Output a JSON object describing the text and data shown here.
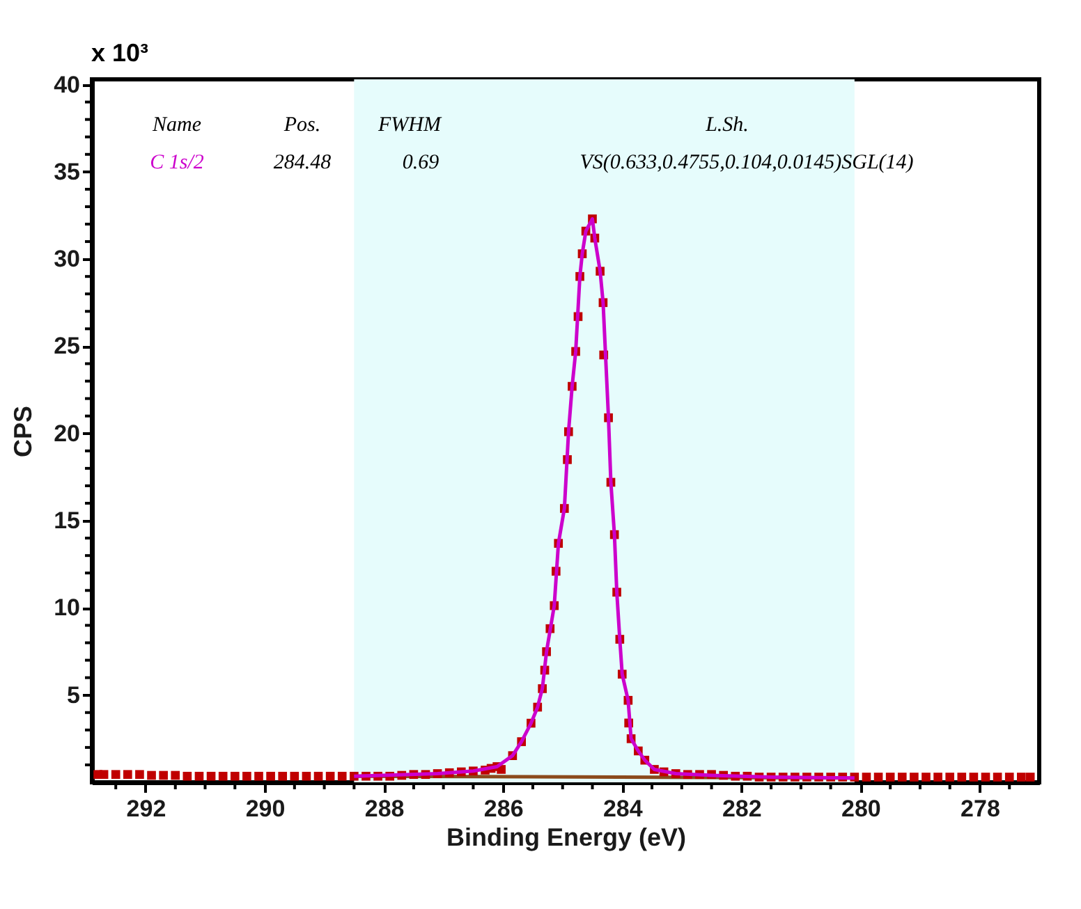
{
  "chart_data": {
    "type": "scatter",
    "xlabel": "Binding Energy (eV)",
    "ylabel": "CPS",
    "annotations": [
      "Name",
      "Pos.",
      "FWHM",
      "L.Sh.",
      "284.48",
      "0.69",
      "VS(0.633,0.4755,0.104,0.0145)SGL(14)",
      "x 10³"
    ],
    "xlim": [
      292.9,
      277.0
    ],
    "ylim": [
      0,
      40.3
    ],
    "xticks": [
      {
        "value": 292.5,
        "label": null
      },
      292,
      {
        "value": 291.5,
        "label": null
      },
      {
        "value": 291,
        "label": null
      },
      {
        "value": 290.5,
        "label": null
      },
      290,
      {
        "value": 289.5,
        "label": null
      },
      {
        "value": 289,
        "label": null
      },
      {
        "value": 288.5,
        "label": null
      },
      288,
      {
        "value": 287.5,
        "label": null
      },
      {
        "value": 287,
        "label": null
      },
      {
        "value": 286.5,
        "label": null
      },
      286,
      {
        "value": 285.5,
        "label": null
      },
      {
        "value": 285,
        "label": null
      },
      {
        "value": 284.5,
        "label": null
      },
      284,
      {
        "value": 283.5,
        "label": null
      },
      {
        "value": 283,
        "label": null
      },
      {
        "value": 282.5,
        "label": null
      },
      282,
      {
        "value": 281.5,
        "label": null
      },
      {
        "value": 281,
        "label": null
      },
      {
        "value": 280.5,
        "label": null
      },
      280,
      {
        "value": 279.5,
        "label": null
      },
      {
        "value": 279,
        "label": null
      },
      {
        "value": 278.5,
        "label": null
      },
      278,
      {
        "value": 277.5,
        "label": null
      }
    ],
    "yticks": [
      {
        "value": 1,
        "label": null
      },
      {
        "value": 2,
        "label": null
      },
      {
        "value": 3,
        "label": null
      },
      {
        "value": 4,
        "label": null
      },
      5,
      {
        "value": 6,
        "label": null
      },
      {
        "value": 7,
        "label": null
      },
      {
        "value": 8,
        "label": null
      },
      {
        "value": 9,
        "label": null
      },
      10,
      {
        "value": 11,
        "label": null
      },
      {
        "value": 12,
        "label": null
      },
      {
        "value": 13,
        "label": null
      },
      {
        "value": 14,
        "label": null
      },
      15,
      {
        "value": 16,
        "label": null
      },
      {
        "value": 17,
        "label": null
      },
      {
        "value": 18,
        "label": null
      },
      {
        "value": 19,
        "label": null
      },
      20,
      {
        "value": 21,
        "label": null
      },
      {
        "value": 22,
        "label": null
      },
      {
        "value": 23,
        "label": null
      },
      {
        "value": 24,
        "label": null
      },
      25,
      {
        "value": 26,
        "label": null
      },
      {
        "value": 27,
        "label": null
      },
      {
        "value": 28,
        "label": null
      },
      {
        "value": 29,
        "label": null
      },
      30,
      {
        "value": 31,
        "label": null
      },
      {
        "value": 32,
        "label": null
      },
      {
        "value": 33,
        "label": null
      },
      {
        "value": 34,
        "label": null
      },
      35,
      {
        "value": 36,
        "label": null
      },
      {
        "value": 37,
        "label": null
      },
      {
        "value": 38,
        "label": null
      },
      {
        "value": 39,
        "label": null
      },
      40
    ],
    "bands": [
      {
        "axis": "x",
        "from": 288.5,
        "to": 280.1,
        "color": "#e6fcfc"
      }
    ],
    "grid": false,
    "series": [
      {
        "type": "line",
        "color": "#8b4a1c",
        "x": [
          288.5,
          280.1
        ],
        "values": [
          0.35,
          0.25
        ]
      },
      {
        "marker": "square",
        "color": "#c00000",
        "x": [
          292.8,
          292.7,
          292.5,
          292.3,
          292.1,
          291.9,
          291.7,
          291.5,
          291.3,
          291.1,
          290.9,
          290.7,
          290.5,
          290.3,
          290.1,
          289.9,
          289.7,
          289.5,
          289.3,
          289.1,
          288.9,
          288.7,
          288.5,
          288.3,
          288.1,
          287.9,
          287.7,
          287.5,
          287.3,
          287.1,
          286.9,
          286.7,
          286.5,
          286.3,
          286.2,
          286.1,
          286.03,
          285.84,
          285.69,
          285.53,
          285.42,
          285.34,
          285.3,
          285.27,
          285.21,
          285.14,
          285.11,
          285.07,
          284.97,
          284.92,
          284.9,
          284.84,
          284.78,
          284.74,
          284.71,
          284.67,
          284.61,
          284.5,
          284.46,
          284.37,
          284.32,
          284.31,
          284.23,
          284.19,
          284.13,
          284.09,
          284.04,
          284.0,
          283.9,
          283.89,
          283.85,
          283.73,
          283.62,
          283.46,
          283.3,
          283.1,
          282.9,
          282.7,
          282.5,
          282.3,
          282.1,
          281.9,
          281.7,
          281.5,
          281.3,
          281.1,
          280.9,
          280.7,
          280.5,
          280.3,
          280.1,
          279.9,
          279.7,
          279.5,
          279.3,
          279.1,
          278.9,
          278.7,
          278.5,
          278.3,
          278.1,
          277.9,
          277.7,
          277.5,
          277.3,
          277.15
        ],
        "values": [
          0.45,
          0.45,
          0.45,
          0.45,
          0.45,
          0.4,
          0.4,
          0.4,
          0.35,
          0.35,
          0.35,
          0.35,
          0.35,
          0.35,
          0.35,
          0.35,
          0.35,
          0.35,
          0.35,
          0.35,
          0.35,
          0.35,
          0.35,
          0.35,
          0.35,
          0.35,
          0.4,
          0.45,
          0.45,
          0.5,
          0.55,
          0.6,
          0.65,
          0.7,
          0.8,
          0.9,
          0.74,
          1.53,
          2.33,
          3.39,
          4.31,
          5.37,
          6.43,
          7.49,
          8.81,
          10.13,
          12.1,
          13.7,
          15.7,
          18.5,
          20.1,
          22.7,
          24.7,
          26.7,
          29.0,
          30.3,
          31.6,
          32.3,
          31.2,
          29.3,
          27.5,
          24.5,
          20.9,
          17.2,
          14.2,
          10.9,
          8.2,
          6.2,
          4.7,
          3.4,
          2.5,
          1.8,
          1.27,
          0.74,
          0.6,
          0.5,
          0.45,
          0.45,
          0.45,
          0.4,
          0.35,
          0.35,
          0.3,
          0.3,
          0.3,
          0.3,
          0.3,
          0.3,
          0.3,
          0.3,
          0.3,
          0.3,
          0.3,
          0.3,
          0.3,
          0.3,
          0.3,
          0.3,
          0.3,
          0.3,
          0.3,
          0.3,
          0.3,
          0.3,
          0.3,
          0.3
        ]
      },
      {
        "type": "line",
        "name": "C 1s/2",
        "color": "#cc00cc",
        "x": [
          288.5,
          287.1,
          286.5,
          286.1,
          285.84,
          285.69,
          285.53,
          285.42,
          285.34,
          285.27,
          285.14,
          285.07,
          284.97,
          284.9,
          284.84,
          284.78,
          284.71,
          284.67,
          284.61,
          284.5,
          284.46,
          284.37,
          284.32,
          284.23,
          284.19,
          284.13,
          284.09,
          284.04,
          284.0,
          283.9,
          283.85,
          283.73,
          283.62,
          283.46,
          283.1,
          282.5,
          281.5,
          280.1
        ],
        "values": [
          0.35,
          0.5,
          0.65,
          0.9,
          1.53,
          2.33,
          3.39,
          4.31,
          5.37,
          7.49,
          10.13,
          13.7,
          15.7,
          20.1,
          22.7,
          24.7,
          29.0,
          30.3,
          31.6,
          32.3,
          31.2,
          29.3,
          27.5,
          20.9,
          17.2,
          14.2,
          10.9,
          8.2,
          6.2,
          4.7,
          2.5,
          1.8,
          1.27,
          0.74,
          0.5,
          0.4,
          0.3,
          0.25
        ]
      }
    ]
  }
}
